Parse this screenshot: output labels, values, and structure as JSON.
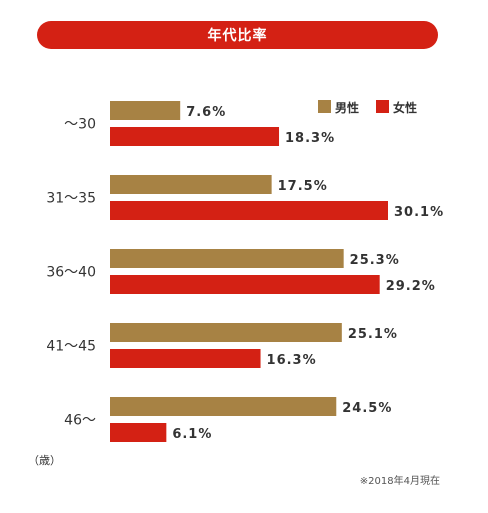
{
  "title": "年代比率",
  "unit_label": "（歳）",
  "note": "※2018年4月現在",
  "colors": {
    "male": "#a78244",
    "female": "#d42114"
  },
  "chart_data": {
    "type": "bar",
    "orientation": "horizontal",
    "title": "年代比率",
    "categories": [
      "〜30",
      "31〜35",
      "36〜40",
      "41〜45",
      "46〜"
    ],
    "series": [
      {
        "name": "男性",
        "values": [
          7.6,
          17.5,
          25.3,
          25.1,
          24.5
        ]
      },
      {
        "name": "女性",
        "values": [
          18.3,
          30.1,
          29.2,
          16.3,
          6.1
        ]
      }
    ],
    "value_labels": {
      "男性": [
        "7.6%",
        "17.5%",
        "25.3%",
        "25.1%",
        "24.5%"
      ],
      "女性": [
        "18.3%",
        "30.1%",
        "29.2%",
        "16.3%",
        "6.1%"
      ]
    },
    "xlim": [
      0,
      30.1
    ],
    "grid": false,
    "legend": "top-right"
  }
}
